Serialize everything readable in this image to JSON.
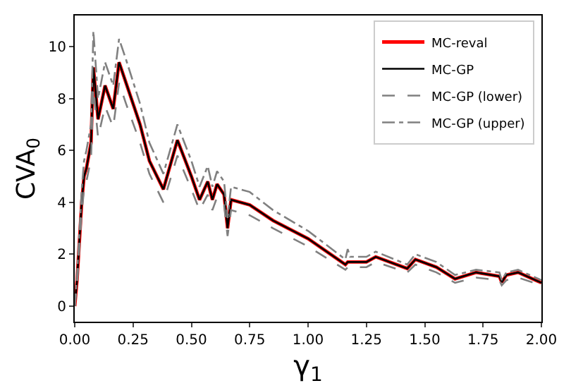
{
  "chart_data": {
    "type": "line",
    "xlabel": "γ$_{1}$",
    "ylabel": "CVA$_{0}$",
    "x": [
      0,
      0.01,
      0.03,
      0.04,
      0.05,
      0.07,
      0.08,
      0.1,
      0.13,
      0.165,
      0.19,
      0.22,
      0.28,
      0.32,
      0.38,
      0.44,
      0.5,
      0.535,
      0.57,
      0.59,
      0.61,
      0.64,
      0.655,
      0.67,
      0.75,
      0.85,
      1.0,
      1.16,
      1.17,
      1.18,
      1.25,
      1.29,
      1.425,
      1.46,
      1.55,
      1.63,
      1.72,
      1.82,
      1.83,
      1.85,
      1.9,
      2.0
    ],
    "series": [
      {
        "name": "MC-reval",
        "color": "#ff0000",
        "line_style": "solid",
        "values": [
          0,
          1.0,
          4.0,
          5.0,
          5.3,
          6.3,
          9.2,
          7.2,
          8.5,
          7.6,
          9.4,
          8.6,
          7.0,
          5.6,
          4.5,
          6.4,
          5.0,
          4.1,
          4.8,
          4.1,
          4.7,
          4.3,
          3.0,
          4.1,
          3.9,
          3.3,
          2.6,
          1.6,
          1.7,
          1.7,
          1.7,
          1.9,
          1.45,
          1.8,
          1.5,
          1.05,
          1.3,
          1.15,
          0.92,
          1.2,
          1.3,
          0.9
        ]
      },
      {
        "name": "MC-GP",
        "color": "#000000",
        "line_style": "solid",
        "values": [
          0,
          1.0,
          4.0,
          5.0,
          5.3,
          6.3,
          9.2,
          7.2,
          8.5,
          7.6,
          9.4,
          8.6,
          7.0,
          5.6,
          4.5,
          6.4,
          5.0,
          4.1,
          4.8,
          4.1,
          4.7,
          4.3,
          3.0,
          4.1,
          3.9,
          3.3,
          2.6,
          1.6,
          1.7,
          1.7,
          1.7,
          1.9,
          1.45,
          1.8,
          1.5,
          1.05,
          1.3,
          1.15,
          0.92,
          1.2,
          1.3,
          0.9
        ]
      },
      {
        "name": "MC-GP (lower)",
        "color": "#808080",
        "line_style": "dashed",
        "values": [
          0,
          0.8,
          3.6,
          4.5,
          4.8,
          5.7,
          8.4,
          6.5,
          7.7,
          6.9,
          8.6,
          7.8,
          6.3,
          5.1,
          4.0,
          5.8,
          4.5,
          3.7,
          4.3,
          3.7,
          4.2,
          3.9,
          2.7,
          3.7,
          3.5,
          3.0,
          2.3,
          1.4,
          1.5,
          1.5,
          1.5,
          1.7,
          1.3,
          1.6,
          1.3,
          0.9,
          1.1,
          1.0,
          0.8,
          1.0,
          1.1,
          0.8
        ]
      },
      {
        "name": "MC-GP (upper)",
        "color": "#808080",
        "line_style": "dashdot",
        "values": [
          0,
          1.2,
          4.5,
          5.6,
          6.0,
          7.0,
          10.6,
          8.0,
          9.4,
          8.5,
          10.3,
          9.5,
          7.8,
          6.3,
          5.1,
          7.0,
          5.6,
          4.6,
          5.4,
          4.6,
          5.2,
          4.8,
          3.4,
          4.6,
          4.4,
          3.7,
          2.9,
          1.8,
          2.2,
          1.9,
          1.9,
          2.1,
          1.6,
          2.0,
          1.7,
          1.2,
          1.4,
          1.3,
          1.0,
          1.3,
          1.4,
          1.0
        ]
      }
    ],
    "xlim": [
      0,
      2
    ],
    "xticks": [
      {
        "value": 0,
        "label": "0.00"
      },
      {
        "value": 0.25,
        "label": "0.25"
      },
      {
        "value": 0.5,
        "label": "0.50"
      },
      {
        "value": 0.75,
        "label": "0.75"
      },
      {
        "value": 1,
        "label": "1.00"
      },
      {
        "value": 1.25,
        "label": "1.25"
      },
      {
        "value": 1.5,
        "label": "1.50"
      },
      {
        "value": 1.75,
        "label": "1.75"
      },
      {
        "value": 2,
        "label": "2.00"
      }
    ],
    "ylim": [
      -0.6,
      11.2
    ],
    "yticks": [
      0,
      2,
      4,
      6,
      8,
      10
    ],
    "grid": false,
    "legend": "top right",
    "marker": "none"
  }
}
